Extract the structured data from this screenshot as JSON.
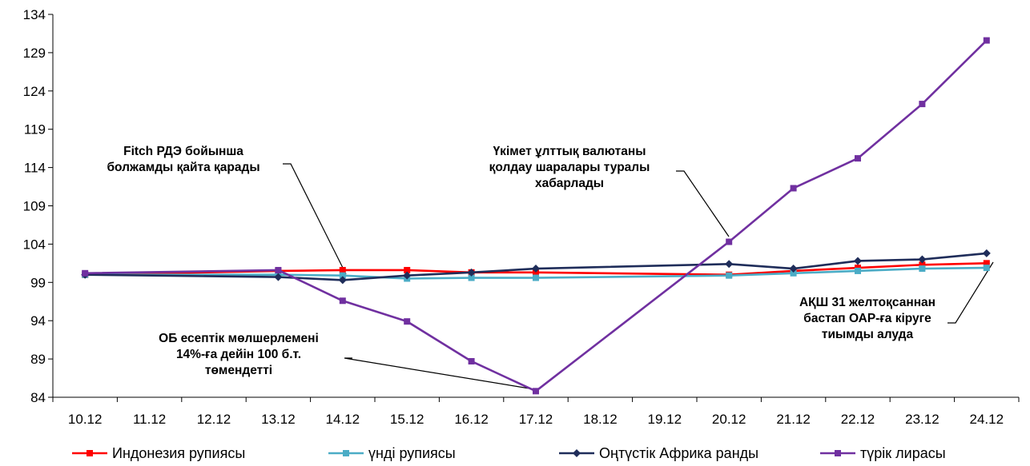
{
  "chart_data": {
    "type": "line",
    "title": "",
    "xlabel": "",
    "ylabel": "",
    "categories": [
      "10.12",
      "11.12",
      "12.12",
      "13.12",
      "14.12",
      "15.12",
      "16.12",
      "17.12",
      "18.12",
      "19.12",
      "20.12",
      "21.12",
      "22.12",
      "23.12",
      "24.12"
    ],
    "ylim": [
      84,
      134
    ],
    "yticks": [
      84,
      89,
      94,
      99,
      104,
      109,
      114,
      119,
      124,
      129,
      134
    ],
    "grid": false,
    "legend_position": "bottom",
    "series": [
      {
        "name": "Индонезия рупиясы",
        "color": "#ff0000",
        "marker": "square",
        "points": [
          [
            0,
            100
          ],
          [
            3,
            100.5
          ],
          [
            4,
            100.6
          ],
          [
            5,
            100.6
          ],
          [
            6,
            100.3
          ],
          [
            7,
            100.3
          ],
          [
            10,
            100
          ],
          [
            11,
            100.5
          ],
          [
            12,
            100.9
          ],
          [
            13,
            101.3
          ],
          [
            14,
            101.5
          ]
        ]
      },
      {
        "name": "үнді рупиясы",
        "color": "#4bacc6",
        "marker": "square",
        "points": [
          [
            0,
            100
          ],
          [
            3,
            100
          ],
          [
            4,
            99.9
          ],
          [
            5,
            99.5
          ],
          [
            6,
            99.6
          ],
          [
            7,
            99.6
          ],
          [
            10,
            99.9
          ],
          [
            11,
            100.2
          ],
          [
            12,
            100.5
          ],
          [
            13,
            100.8
          ],
          [
            14,
            100.9
          ]
        ]
      },
      {
        "name": "Оңтүстік Африка ранды",
        "color": "#1f2d5a",
        "marker": "diamond",
        "points": [
          [
            0,
            100
          ],
          [
            3,
            99.7
          ],
          [
            4,
            99.3
          ],
          [
            5,
            99.9
          ],
          [
            6,
            100.3
          ],
          [
            7,
            100.8
          ],
          [
            10,
            101.4
          ],
          [
            11,
            100.8
          ],
          [
            12,
            101.8
          ],
          [
            13,
            102
          ],
          [
            14,
            102.8
          ]
        ]
      },
      {
        "name": "түрік лирасы",
        "color": "#7030a0",
        "marker": "square",
        "points": [
          [
            0,
            100.2
          ],
          [
            3,
            100.6
          ],
          [
            4,
            96.6
          ],
          [
            5,
            93.9
          ],
          [
            6,
            88.7
          ],
          [
            7,
            84.8
          ],
          [
            10,
            104.3
          ],
          [
            11,
            111.3
          ],
          [
            12,
            115.2
          ],
          [
            13,
            122.3
          ],
          [
            14,
            130.6
          ]
        ]
      }
    ],
    "annotations": [
      {
        "lines": [
          "Fitch РДЭ бойынша",
          "болжамды қайта қарады"
        ]
      },
      {
        "lines": [
          "Үкімет ұлттық валютаны",
          "қолдау шаралары туралы",
          "хабарлады"
        ]
      },
      {
        "lines": [
          "ОБ есептік мөлшерлемені",
          "14%-ға дейін 100 б.т.",
          "төмендетті"
        ]
      },
      {
        "lines": [
          "АҚШ 31 желтоқсаннан",
          "бастап ОАР-ға кіруге",
          "тиымды алуда"
        ]
      }
    ]
  }
}
